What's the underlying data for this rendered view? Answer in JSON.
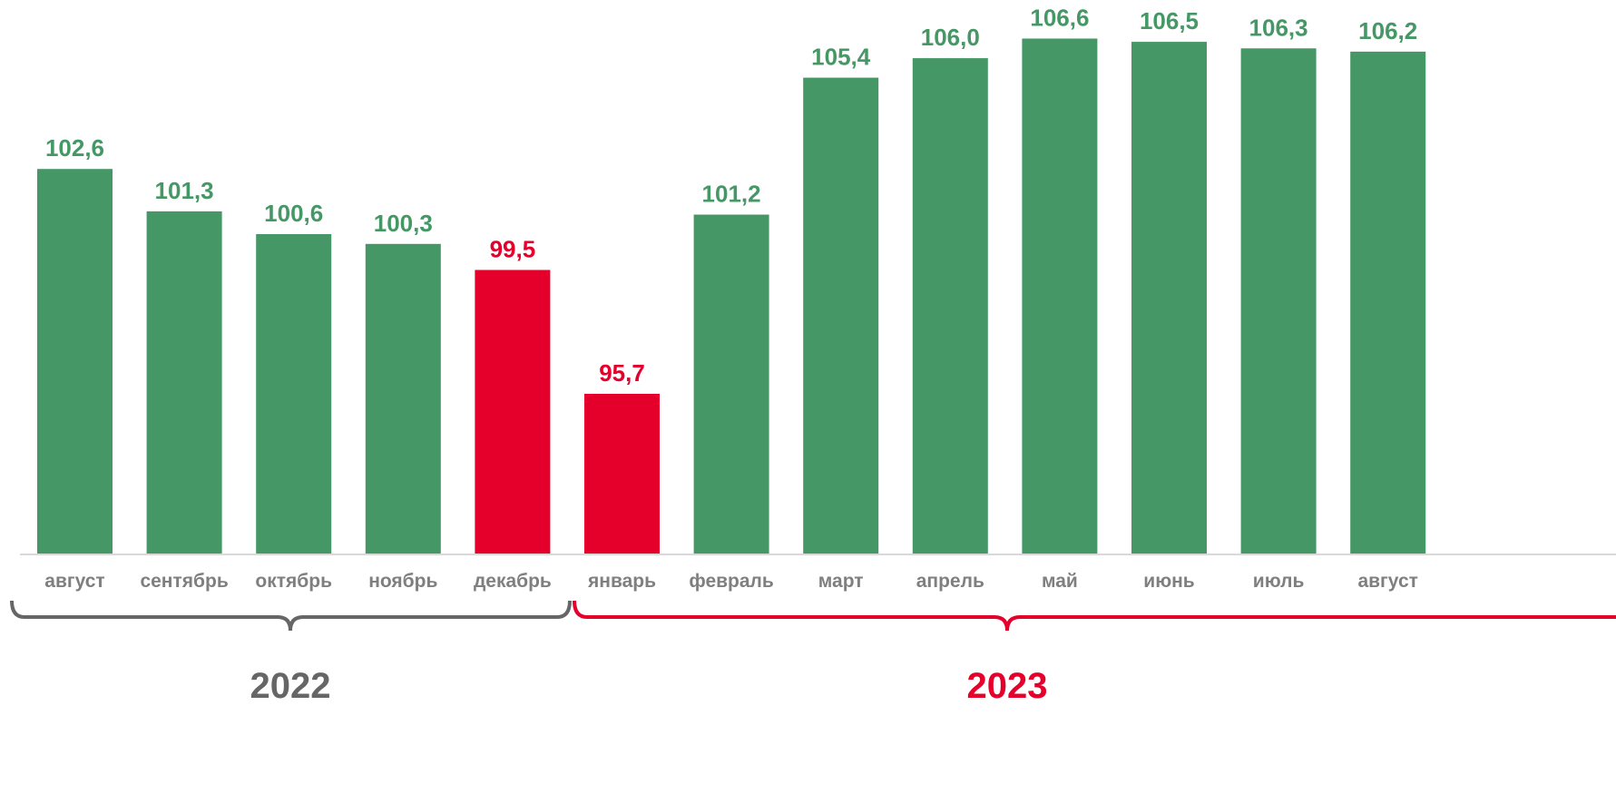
{
  "chart_data": {
    "type": "bar",
    "categories": [
      "август",
      "сентябрь",
      "октябрь",
      "ноябрь",
      "декабрь",
      "январь",
      "февраль",
      "март",
      "апрель",
      "май",
      "июнь",
      "июль",
      "август"
    ],
    "values": [
      102.6,
      101.3,
      100.6,
      100.3,
      99.5,
      95.7,
      101.2,
      105.4,
      106.0,
      106.6,
      106.5,
      106.3,
      106.2
    ],
    "value_labels": [
      "102,6",
      "101,3",
      "100,6",
      "100,3",
      "99,5",
      "95,7",
      "101,2",
      "105,4",
      "106,0",
      "106,6",
      "106,5",
      "106,3",
      "106,2"
    ],
    "groups": [
      {
        "label": "2022",
        "from": 0,
        "to": 4,
        "color": "#666666"
      },
      {
        "label": "2023",
        "from": 5,
        "to": 12,
        "color": "#e4002b"
      }
    ],
    "highlight_below": 100,
    "colors": {
      "positive": "#459865",
      "negative": "#e4002b",
      "axis": "#d9d9d9",
      "tick": "#7f7f7f"
    },
    "ylim": [
      90.8,
      107.2
    ],
    "grid": false,
    "title": "",
    "xlabel": "",
    "ylabel": ""
  }
}
